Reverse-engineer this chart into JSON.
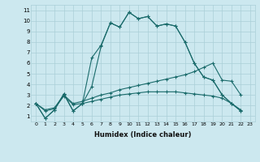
{
  "xlabel": "Humidex (Indice chaleur)",
  "bg_color": "#cce8ef",
  "grid_color": "#aacfd8",
  "line_color": "#1a6b6b",
  "xlim": [
    -0.5,
    23.5
  ],
  "ylim": [
    0.5,
    11.5
  ],
  "xticks": [
    0,
    1,
    2,
    3,
    4,
    5,
    6,
    7,
    8,
    9,
    10,
    11,
    12,
    13,
    14,
    15,
    16,
    17,
    18,
    19,
    20,
    21,
    22,
    23
  ],
  "yticks": [
    1,
    2,
    3,
    4,
    5,
    6,
    7,
    8,
    9,
    10,
    11
  ],
  "series": [
    {
      "x": [
        0,
        1,
        2,
        3,
        4,
        5,
        6,
        7,
        8,
        9,
        10,
        11,
        12,
        13,
        14,
        15,
        16,
        17,
        18,
        19,
        20,
        21,
        22
      ],
      "y": [
        2.2,
        0.8,
        1.6,
        3.1,
        1.5,
        2.2,
        6.5,
        7.7,
        9.8,
        9.4,
        10.8,
        10.2,
        10.4,
        9.5,
        9.7,
        9.5,
        8.0,
        6.0,
        4.7,
        4.4,
        3.0,
        2.2,
        1.5
      ]
    },
    {
      "x": [
        0,
        1,
        2,
        3,
        4,
        5,
        6,
        7,
        8,
        9,
        10,
        11,
        12,
        13,
        14,
        15,
        16,
        17,
        18,
        19,
        20,
        21,
        22
      ],
      "y": [
        2.2,
        0.8,
        1.6,
        3.1,
        1.5,
        2.2,
        3.8,
        7.6,
        9.8,
        9.4,
        10.8,
        10.2,
        10.4,
        9.5,
        9.7,
        9.5,
        8.0,
        6.0,
        4.7,
        4.4,
        3.0,
        2.2,
        1.5
      ]
    },
    {
      "x": [
        0,
        1,
        2,
        3,
        4,
        5,
        6,
        7,
        8,
        9,
        10,
        11,
        12,
        13,
        14,
        15,
        16,
        17,
        18,
        19,
        20,
        21,
        22
      ],
      "y": [
        2.2,
        1.6,
        1.8,
        3.0,
        2.2,
        2.4,
        2.7,
        3.0,
        3.2,
        3.5,
        3.7,
        3.9,
        4.1,
        4.3,
        4.5,
        4.7,
        4.9,
        5.2,
        5.6,
        6.0,
        4.4,
        4.3,
        3.0
      ]
    },
    {
      "x": [
        0,
        1,
        2,
        3,
        4,
        5,
        6,
        7,
        8,
        9,
        10,
        11,
        12,
        13,
        14,
        15,
        16,
        17,
        18,
        19,
        20,
        21,
        22
      ],
      "y": [
        2.2,
        1.5,
        1.7,
        2.9,
        2.1,
        2.2,
        2.4,
        2.6,
        2.8,
        3.0,
        3.1,
        3.2,
        3.3,
        3.3,
        3.3,
        3.3,
        3.2,
        3.1,
        3.0,
        2.9,
        2.7,
        2.2,
        1.6
      ]
    }
  ]
}
